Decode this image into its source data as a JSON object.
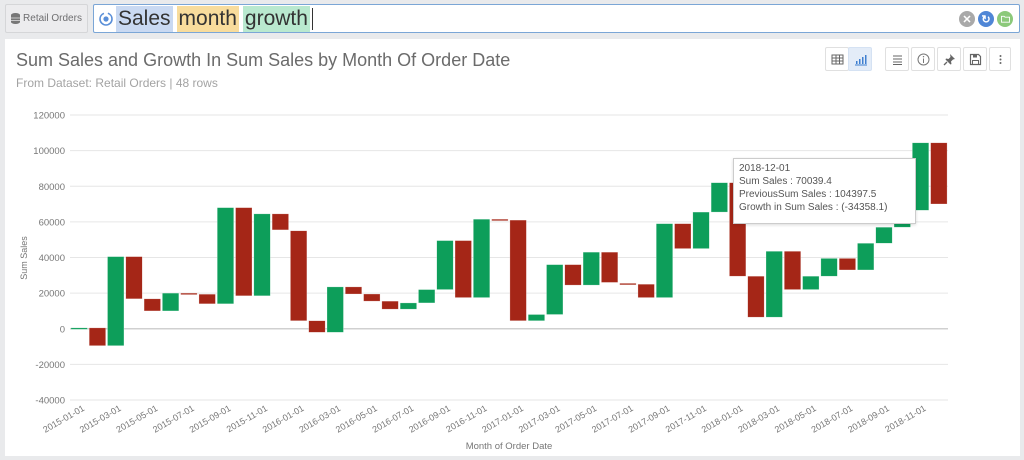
{
  "topbar": {
    "dataset_button": "Retail Orders",
    "search_tokens": [
      "Sales",
      "month",
      "growth"
    ],
    "icons": [
      "clear-icon",
      "refresh-icon",
      "folder-icon"
    ]
  },
  "card": {
    "title": "Sum Sales and Growth In Sum Sales by Month Of Order Date",
    "subtitle": "From Dataset: Retail Orders | 48 rows",
    "toolbar": [
      "table-view-icon",
      "chart-view-icon",
      "settings-list-icon",
      "info-icon",
      "pin-icon",
      "save-icon",
      "more-icon"
    ]
  },
  "tooltip": {
    "date": "2018-12-01",
    "line1": "Sum Sales : 70039.4",
    "line2": "PreviousSum Sales : 104397.5",
    "line3": "Growth in Sum Sales : (-34358.1)"
  },
  "colors": {
    "up": "#0d9e5a",
    "down": "#a52617",
    "grid": "#e6e6e6",
    "axis_text": "#777777"
  },
  "chart_data": {
    "type": "waterfall",
    "title": "Sum Sales and Growth In Sum Sales by Month Of Order Date",
    "xlabel": "Month of Order Date",
    "ylabel": "Sum Sales",
    "ylim": [
      -40000,
      120000
    ],
    "yticks": [
      120000,
      100000,
      80000,
      60000,
      40000,
      20000,
      0,
      -20000,
      -40000
    ],
    "xtick_labels": [
      "2015-01-01",
      "2015-03-01",
      "2015-05-01",
      "2015-07-01",
      "2015-09-01",
      "2015-11-01",
      "2016-01-01",
      "2016-03-01",
      "2016-05-01",
      "2016-07-01",
      "2016-09-01",
      "2016-11-01",
      "2017-01-01",
      "2017-03-01",
      "2017-05-01",
      "2017-07-01",
      "2017-09-01",
      "2017-11-01",
      "2018-01-01",
      "2018-03-01",
      "2018-05-01",
      "2018-07-01",
      "2018-09-01",
      "2018-11-01"
    ],
    "grid": true,
    "series": [
      {
        "name": "Previous Sum Sales",
        "values": [
          0,
          500,
          -9500,
          40500,
          16800,
          10000,
          20000,
          19400,
          14000,
          68000,
          18500,
          64500,
          55000,
          4500,
          -2000,
          23500,
          19500,
          15500,
          11000,
          14500,
          22000,
          49500,
          17500,
          61500,
          61000,
          4500,
          8000,
          36000,
          24500,
          43000,
          25500,
          25000,
          17500,
          59000,
          45000,
          65500,
          82000,
          29500,
          6500,
          43500,
          22000,
          29500,
          39500,
          33000,
          48000,
          57000,
          66500,
          104397.5
        ]
      },
      {
        "name": "Sum Sales",
        "values": [
          500,
          -9500,
          40500,
          16800,
          10000,
          20000,
          19200,
          14000,
          68000,
          18500,
          64500,
          55500,
          4500,
          -2000,
          23500,
          19500,
          15500,
          11000,
          14500,
          22000,
          49500,
          17500,
          61500,
          61000,
          4500,
          8000,
          36000,
          24500,
          43000,
          26000,
          25000,
          17500,
          59000,
          45000,
          65500,
          82000,
          29500,
          6500,
          43500,
          22000,
          29500,
          39500,
          33000,
          48000,
          57000,
          66500,
          104397.5,
          70039.4
        ]
      }
    ]
  }
}
